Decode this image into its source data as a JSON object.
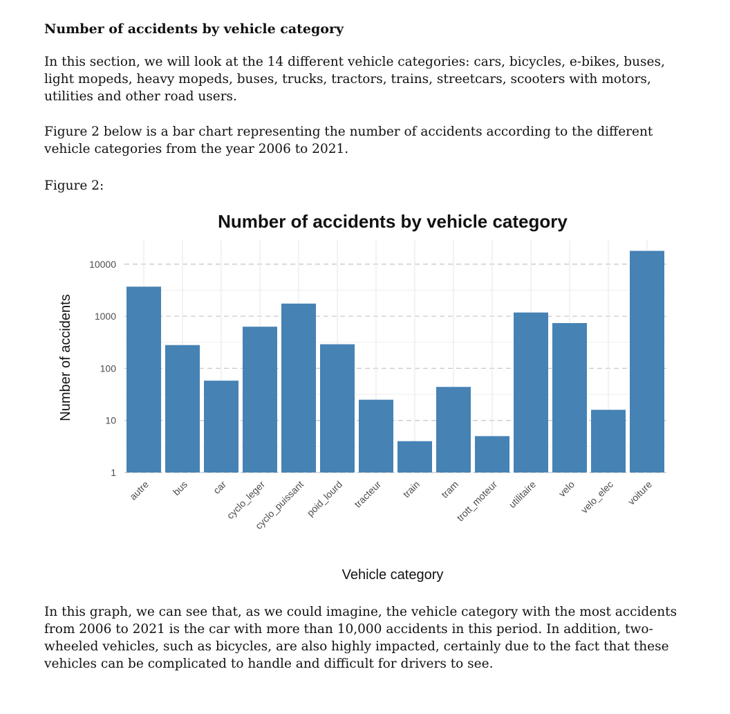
{
  "document": {
    "heading": "Number of accidents by vehicle category",
    "intro": "In this section, we will look at the 14 different vehicle categories: cars, bicycles, e-bikes, buses, light mopeds, heavy mopeds, buses, trucks, tractors, trains, streetcars, scooters with motors, utilities and other road users.",
    "figure_intro": "Figure 2 below is a bar chart representing the number of accidents according to the different vehicle categories from the year 2006 to 2021.",
    "figure_label": "Figure 2:",
    "conclusion": "In this graph, we can see that, as we could imagine, the vehicle category with the most accidents from 2006 to 2021 is the car with more than 10,000 accidents in this period. In addition, two-wheeled vehicles, such as bicycles, are also highly impacted, certainly due to the fact that these vehicles can be complicated to handle and difficult for drivers to see."
  },
  "chart_data": {
    "type": "bar",
    "title": "Number of accidents by vehicle category",
    "xlabel": "Vehicle category",
    "ylabel": "Number of accidents",
    "yscale": "log10",
    "ylim": [
      1,
      18000
    ],
    "yticks": [
      1,
      10,
      100,
      1000,
      10000
    ],
    "ytick_labels": [
      "1",
      "10",
      "100",
      "1000",
      "10000"
    ],
    "grid": true,
    "categories": [
      "autre",
      "bus",
      "car",
      "cyclo_leger",
      "cyclo_puissant",
      "poid_lourd",
      "tracteur",
      "train",
      "tram",
      "trott_moteur",
      "utilitaire",
      "velo",
      "velo_elec",
      "voiture"
    ],
    "values": [
      3700,
      280,
      58,
      630,
      1750,
      290,
      25,
      4,
      44,
      5,
      1180,
      740,
      16,
      18000
    ],
    "bar_color": "#4682B4"
  }
}
